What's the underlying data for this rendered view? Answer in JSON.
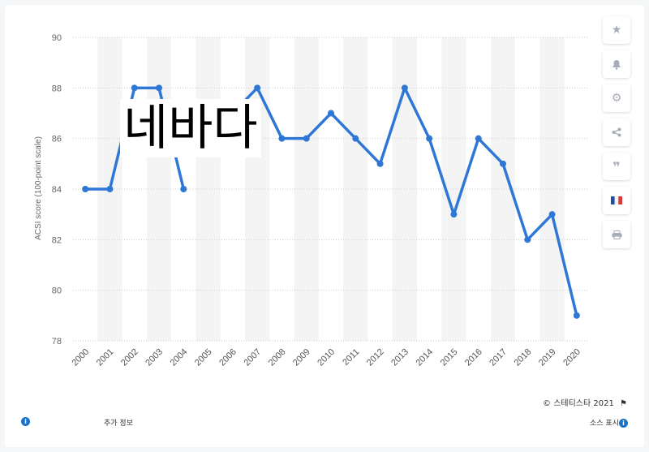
{
  "chart_data": {
    "type": "line",
    "ylabel": "ACSI score (100-point scale)",
    "ylim": [
      78,
      90
    ],
    "yticks": [
      78,
      80,
      82,
      84,
      86,
      88,
      90
    ],
    "categories": [
      "2000",
      "2001",
      "2002",
      "2003",
      "2004",
      "2005",
      "2006",
      "2007",
      "2008",
      "2009",
      "2010",
      "2011",
      "2012",
      "2013",
      "2014",
      "2015",
      "2016",
      "2017",
      "2018",
      "2019",
      "2020"
    ],
    "values": [
      84,
      84,
      88,
      88,
      84,
      null,
      87,
      88,
      86,
      86,
      87,
      86,
      85,
      88,
      86,
      83,
      86,
      85,
      82,
      83,
      79
    ],
    "color": "#2f77d6",
    "grid": true
  },
  "overlay_text": "네바다",
  "toolbar": {
    "icons": [
      "star-icon",
      "bell-icon",
      "gear-icon",
      "share-icon",
      "quote-icon",
      "flag-icon",
      "print-icon"
    ]
  },
  "credit": "© 스테티스타 2021",
  "footer": {
    "additional_info": "추가 정보",
    "show_source": "소스 표시"
  }
}
